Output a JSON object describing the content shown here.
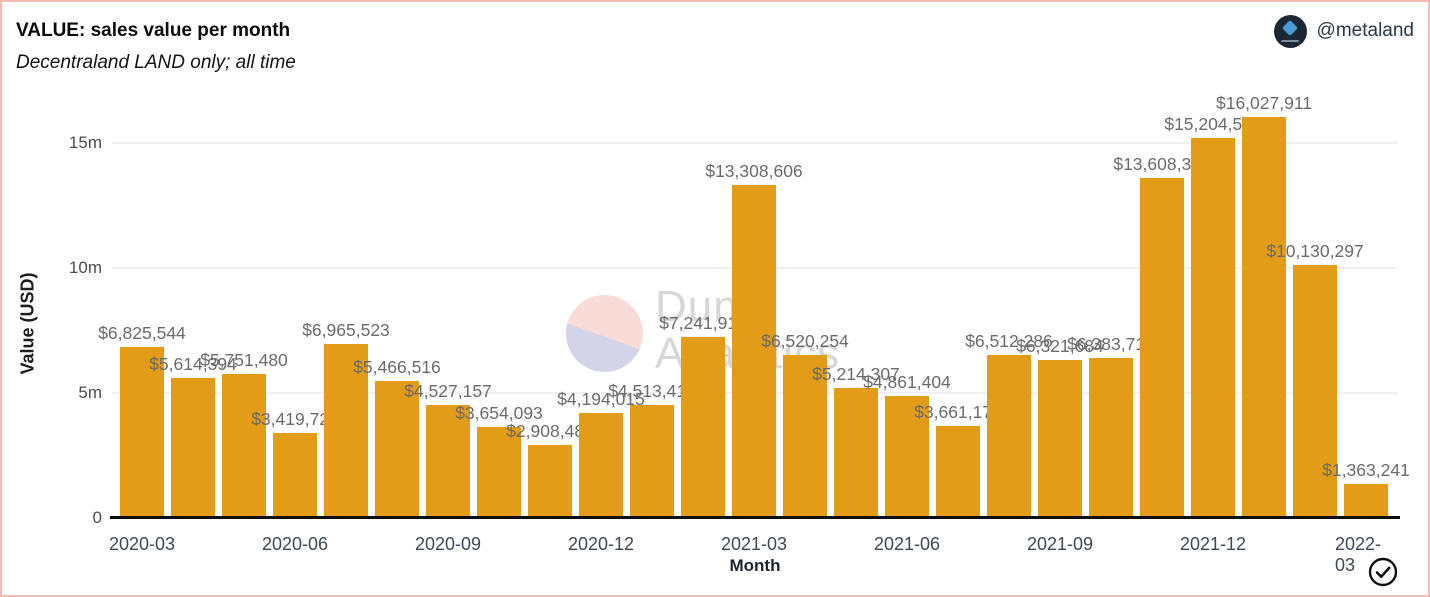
{
  "header": {
    "title": "VALUE: sales value per month",
    "subtitle": "Decentraland LAND only; all time",
    "author_handle": "@metaland",
    "avatar_icon": "metaland-diamond-logo"
  },
  "watermark": {
    "line1": "Dune",
    "line2": "Analytics"
  },
  "footer": {
    "check_icon": "check-circle-icon"
  },
  "colors": {
    "bar": "#e39c17",
    "frame_border": "#f4bcb4",
    "value_label": "#6b6b6b",
    "x_tick_label": "#3e4956",
    "y_tick_label": "#4d4d4d",
    "gridline": "#f0f0f0",
    "axis_line": "#0d0d0d",
    "watermark_text": "#d7d7d7",
    "watermark_pink": "#f9dcd8",
    "watermark_lavender": "#d4d4e8",
    "avatar_bg": "#1b2733"
  },
  "chart_data": {
    "type": "bar",
    "title": "VALUE: sales value per month",
    "subtitle": "Decentraland LAND only; all time",
    "xlabel": "Month",
    "ylabel": "Value (USD)",
    "categories": [
      "2020-03",
      "2020-04",
      "2020-05",
      "2020-06",
      "2020-07",
      "2020-08",
      "2020-09",
      "2020-10",
      "2020-11",
      "2020-12",
      "2021-01",
      "2021-02",
      "2021-03",
      "2021-04",
      "2021-05",
      "2021-06",
      "2021-07",
      "2021-08",
      "2021-09",
      "2021-10",
      "2021-11",
      "2021-12",
      "2022-01",
      "2022-02",
      "2022-03"
    ],
    "values": [
      6825544,
      5614394,
      5751480,
      3419721,
      6965523,
      5466516,
      4527157,
      3654093,
      2908482,
      4194015,
      4513412,
      7241912,
      13308606,
      6520254,
      5214307,
      4861404,
      3661175,
      6512286,
      6321684,
      6383712,
      13608320,
      15204560,
      16027911,
      10130297,
      1363241
    ],
    "value_labels": [
      "$6,825,544",
      "$5,614,394",
      "$5,751,480",
      "$3,419,721",
      "$6,965,523",
      "$5,466,516",
      "$4,527,157",
      "$3,654,093",
      "$2,908,482",
      "$4,194,015",
      "$4,513,412",
      "$7,241,912",
      "$13,308,606",
      "$6,520,254",
      "$5,214,307",
      "$4,861,404",
      "$3,661,175",
      "$6,512,286",
      "$6,321,684",
      "$6,383,712",
      "$13,608,320",
      "$15,204,560",
      "$16,027,911",
      "$10,130,297",
      "$1,363,241"
    ],
    "x_tick_labels": [
      "2020-03",
      "2020-06",
      "2020-09",
      "2020-12",
      "2021-03",
      "2021-06",
      "2021-09",
      "2021-12",
      "2022-03"
    ],
    "x_tick_every": 3,
    "y_tick_labels": [
      "0",
      "5m",
      "10m",
      "15m"
    ],
    "y_tick_values": [
      0,
      5000000,
      10000000,
      15000000
    ],
    "ylim": [
      0,
      16500000
    ],
    "grid": "horizontal",
    "legend": "none",
    "bar_color": "#e39c17"
  }
}
